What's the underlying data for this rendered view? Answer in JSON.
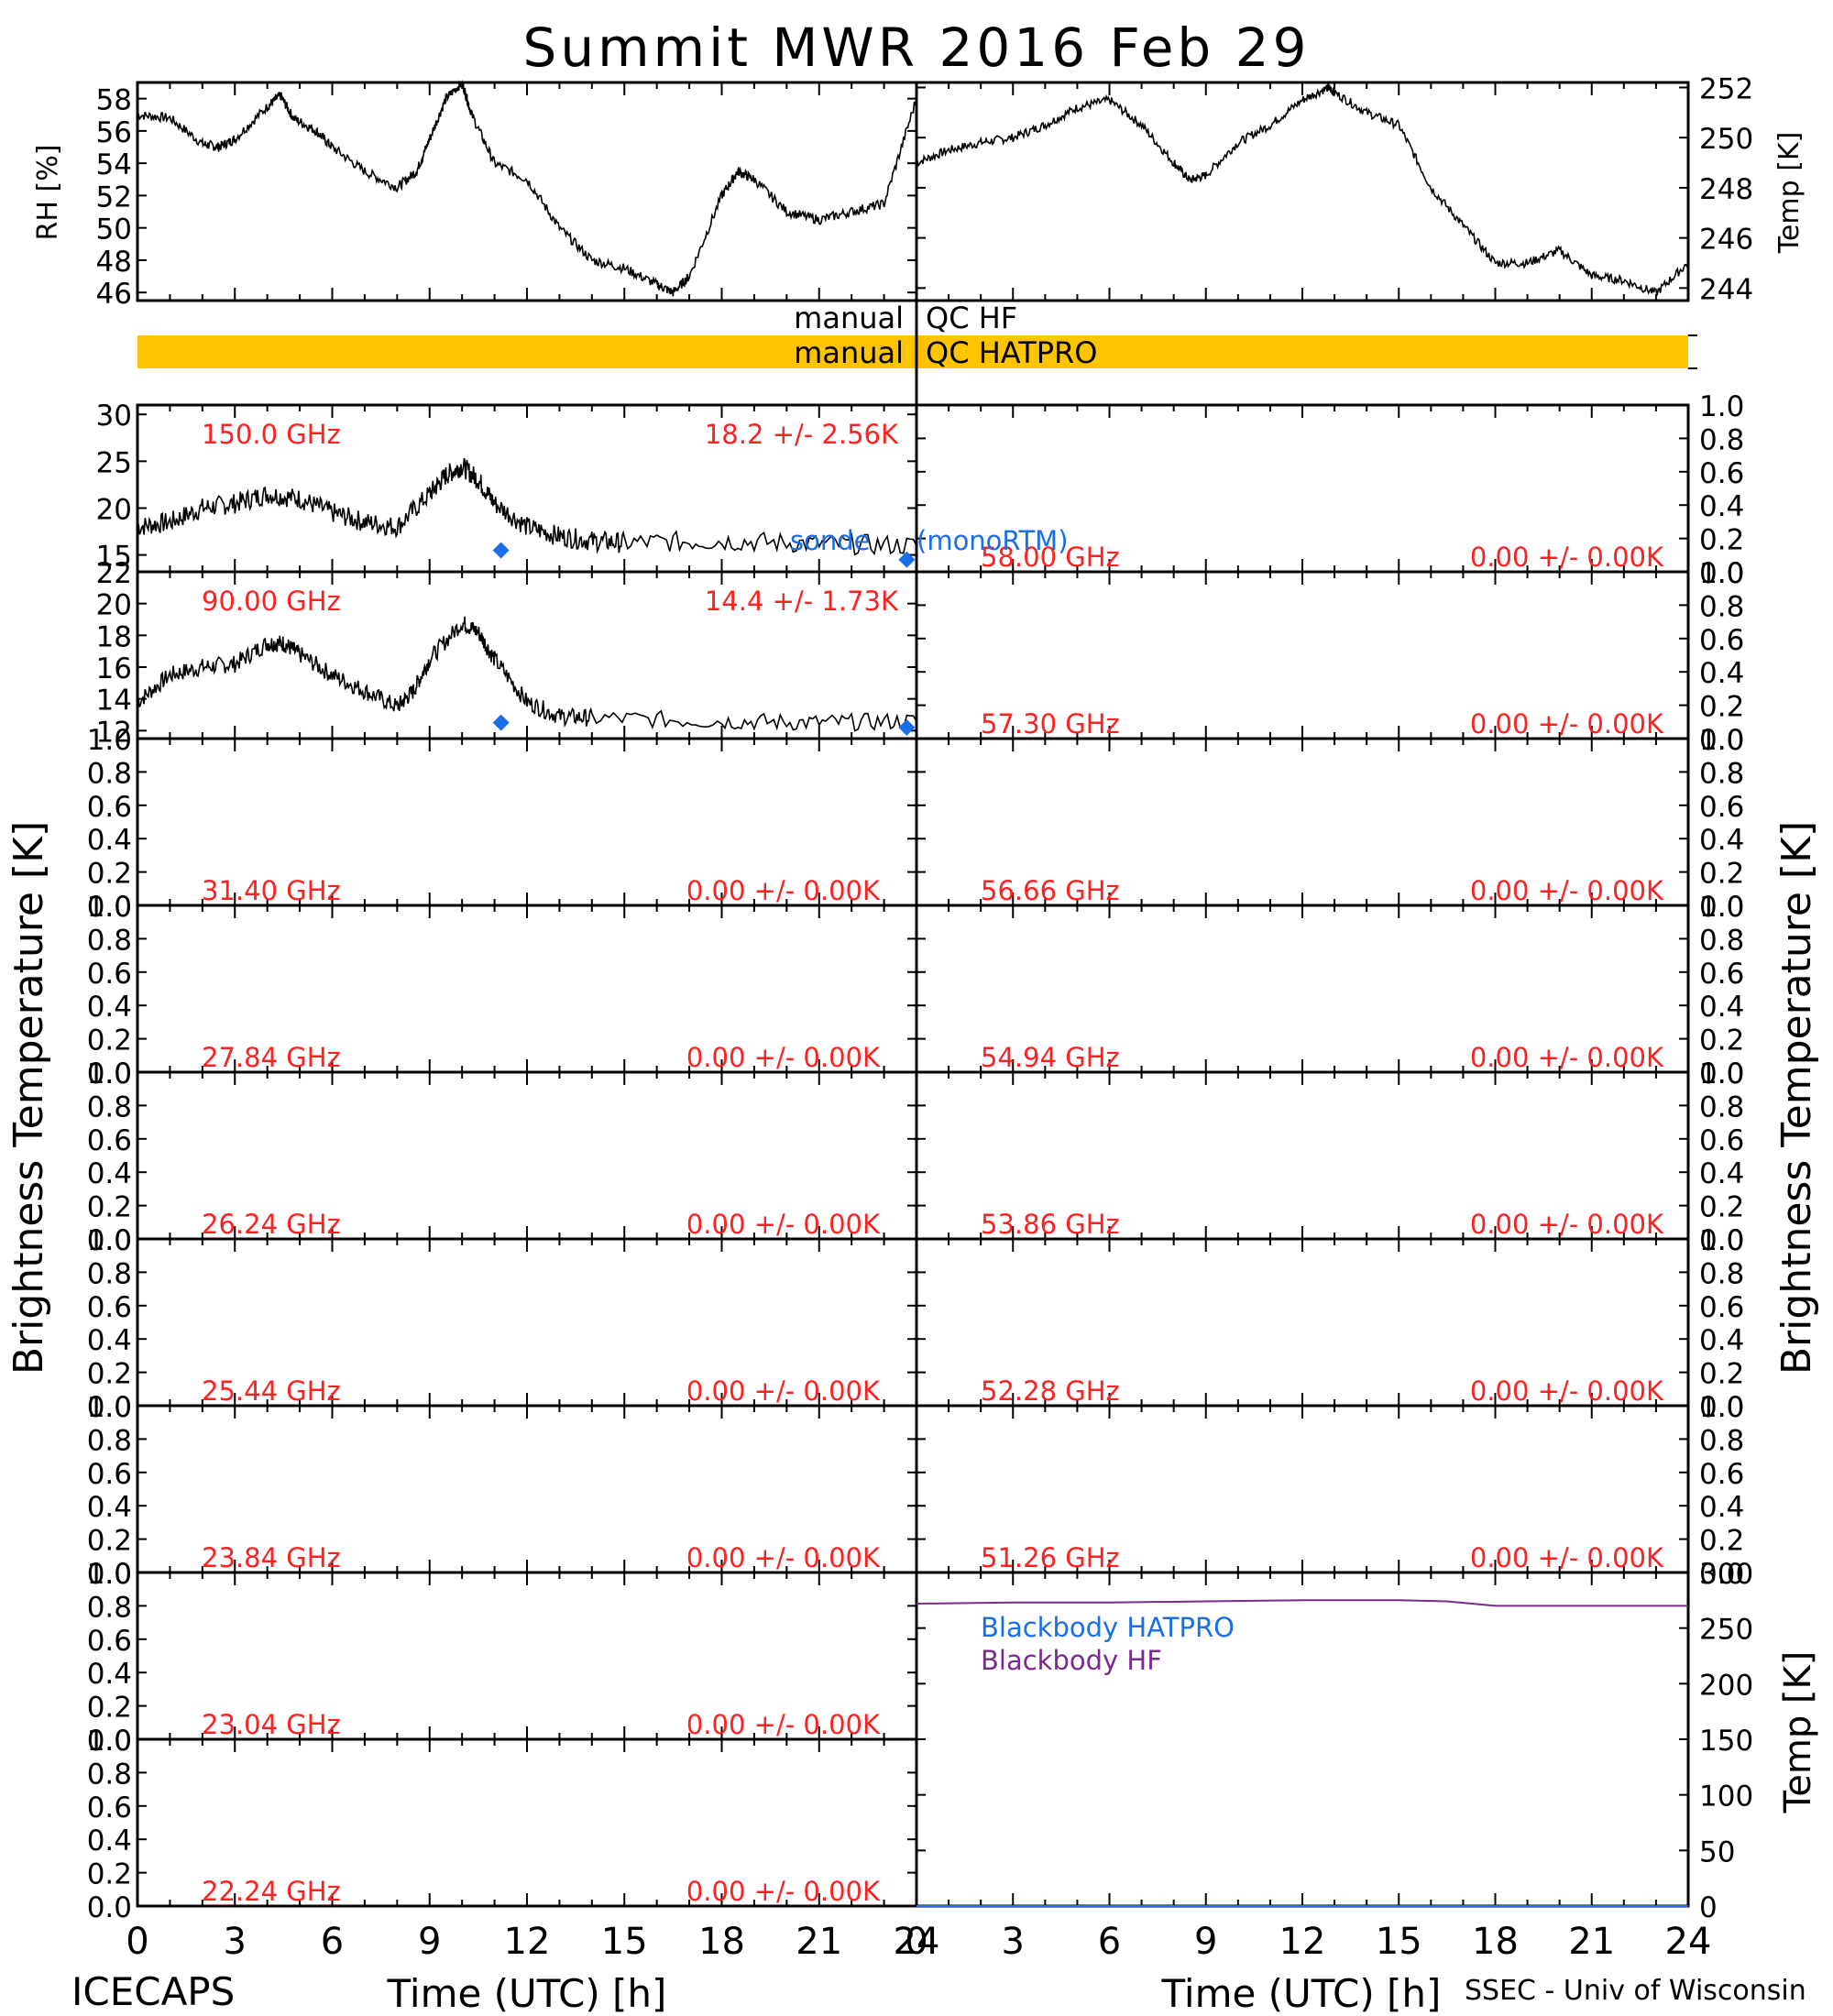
{
  "title": "Summit MWR 2016 Feb 29",
  "footer": {
    "left": "ICECAPS",
    "right": "SSEC - Univ of Wisconsin"
  },
  "colors": {
    "label_red": "#ff2020",
    "retrieval_blue": "#1a6ee8",
    "blackbody_purple": "#7a2a8c",
    "qc_flag_amber": "#ffc400"
  },
  "qc": {
    "hf": {
      "left": "manual",
      "right": "QC HF"
    },
    "hatpro": {
      "left": "manual",
      "right": "QC HATPRO"
    }
  },
  "axes": {
    "rh_ylabel": "RH [%]",
    "temp_ylabel": "Temp [K]",
    "tb_ylabel": "Brightness Temperature [K]",
    "bb_ylabel": "Temp [K]",
    "xlabel": "Time (UTC) [h]"
  },
  "annotations": {
    "monortm": "(monoRTM)",
    "monortm_overlap": "sonde"
  },
  "chart_data": [
    {
      "id": "rh",
      "type": "line",
      "xlim": [
        0,
        24
      ],
      "ylim": [
        45.5,
        59
      ],
      "yticks": [
        46,
        48,
        50,
        52,
        54,
        56,
        58
      ],
      "ylabel": "RH [%]",
      "x": [
        0,
        1,
        2,
        2.5,
        3,
        4,
        4.4,
        4.8,
        5.5,
        6,
        7,
        8,
        8.6,
        9,
        9.5,
        10,
        10.3,
        11,
        12,
        13,
        14,
        15,
        16,
        16.5,
        17,
        18,
        18.5,
        19,
        20,
        21,
        22,
        23,
        24
      ],
      "y": [
        57,
        56.8,
        55.2,
        55.0,
        55.5,
        57.5,
        58.2,
        56.8,
        56,
        55,
        53.5,
        52.5,
        53.5,
        55.5,
        58,
        59,
        57,
        54,
        53,
        50,
        48,
        47.5,
        46.5,
        46,
        47,
        52,
        53.5,
        53,
        51,
        50.5,
        51,
        51.5,
        58
      ]
    },
    {
      "id": "air-temp",
      "type": "line",
      "xlim": [
        0,
        24
      ],
      "ylim": [
        243.5,
        252.2
      ],
      "yticks": [
        244,
        246,
        248,
        250,
        252
      ],
      "ylabel": "Temp [K]",
      "x": [
        0,
        1,
        2,
        3,
        4,
        5,
        6,
        7,
        8,
        8.5,
        9,
        10,
        11,
        12,
        12.8,
        13,
        14,
        15,
        16,
        17,
        18,
        19,
        20,
        21,
        22,
        23,
        24
      ],
      "y": [
        249,
        249.5,
        249.8,
        250,
        250.5,
        251.2,
        251.5,
        250.5,
        249,
        248.3,
        248.5,
        249.8,
        250.5,
        251.5,
        252,
        251.8,
        251,
        250.5,
        248,
        246.5,
        245,
        245,
        245.5,
        244.5,
        244.3,
        243.8,
        245
      ]
    },
    {
      "id": "tb-150",
      "type": "line",
      "freq": "150.0 GHz",
      "stat": "18.2 +/-  2.56K",
      "xlim": [
        0,
        24
      ],
      "ylim": [
        13.2,
        31
      ],
      "yticks": [
        15,
        20,
        25,
        30
      ],
      "x": [
        0,
        1,
        2,
        3,
        4,
        5,
        6,
        7,
        8,
        9,
        9.5,
        10,
        10.5,
        11,
        12,
        13,
        14,
        15,
        18,
        21,
        24
      ],
      "y": [
        18,
        18.5,
        20,
        20.5,
        21.5,
        21,
        19.5,
        18.5,
        18,
        21.5,
        23.5,
        24.5,
        23,
        20.5,
        18,
        17,
        16.5,
        16.3,
        16.5,
        16.2,
        16
      ],
      "retrieval_points": [
        {
          "x": 11.2,
          "y": 15.5
        },
        {
          "x": 23.7,
          "y": 14.5
        }
      ]
    },
    {
      "id": "tb-90",
      "type": "line",
      "freq": "90.00 GHz",
      "stat": "14.4 +/-  1.73K",
      "xlim": [
        0,
        24
      ],
      "ylim": [
        11.5,
        22
      ],
      "yticks": [
        12,
        14,
        16,
        18,
        20,
        22
      ],
      "x": [
        0,
        1,
        2,
        3,
        4,
        4.5,
        5,
        6,
        7,
        8,
        8.5,
        9,
        10,
        10.5,
        11,
        12,
        13,
        14,
        18,
        21,
        24
      ],
      "y": [
        13.8,
        15.5,
        16,
        16.2,
        17.5,
        17.5,
        16.8,
        15.5,
        14.5,
        13.5,
        14.5,
        16.5,
        18.8,
        18.2,
        16.5,
        13.8,
        12.9,
        12.8,
        12.6,
        12.5,
        12.6
      ],
      "retrieval_points": [
        {
          "x": 11.2,
          "y": 12.5
        },
        {
          "x": 23.7,
          "y": 12.2
        }
      ]
    },
    {
      "id": "blackbody",
      "type": "line",
      "xlim": [
        0,
        24
      ],
      "ylim": [
        0,
        300
      ],
      "yticks": [
        0,
        50,
        100,
        150,
        200,
        250,
        300
      ],
      "ylabel": "Temp [K]",
      "series": [
        {
          "name": "Blackbody HATPRO",
          "x": [
            0,
            24
          ],
          "y": [
            0,
            0
          ]
        },
        {
          "name": "Blackbody HF",
          "x": [
            0,
            3,
            6,
            9,
            12,
            15,
            16.5,
            18,
            21,
            24
          ],
          "y": [
            272,
            273,
            273,
            274,
            275,
            275,
            274,
            270,
            270,
            270
          ]
        }
      ]
    }
  ],
  "empty_channels": {
    "left": [
      {
        "freq": "31.40 GHz",
        "stat": "0.00 +/-  0.00K"
      },
      {
        "freq": "27.84 GHz",
        "stat": "0.00 +/-  0.00K"
      },
      {
        "freq": "26.24 GHz",
        "stat": "0.00 +/-  0.00K"
      },
      {
        "freq": "25.44 GHz",
        "stat": "0.00 +/-  0.00K"
      },
      {
        "freq": "23.84 GHz",
        "stat": "0.00 +/-  0.00K"
      },
      {
        "freq": "23.04 GHz",
        "stat": "0.00 +/-  0.00K"
      },
      {
        "freq": "22.24 GHz",
        "stat": "0.00 +/-  0.00K"
      }
    ],
    "right": [
      {
        "freq": "58.00 GHz",
        "stat": "0.00 +/-  0.00K"
      },
      {
        "freq": "57.30 GHz",
        "stat": "0.00 +/-  0.00K"
      },
      {
        "freq": "56.66 GHz",
        "stat": "0.00 +/-  0.00K"
      },
      {
        "freq": "54.94 GHz",
        "stat": "0.00 +/-  0.00K"
      },
      {
        "freq": "53.86 GHz",
        "stat": "0.00 +/-  0.00K"
      },
      {
        "freq": "52.28 GHz",
        "stat": "0.00 +/-  0.00K"
      },
      {
        "freq": "51.26 GHz",
        "stat": "0.00 +/-  0.00K"
      }
    ],
    "yticks": [
      0.0,
      0.2,
      0.4,
      0.6,
      0.8,
      1.0
    ]
  },
  "xticks": [
    0,
    3,
    6,
    9,
    12,
    15,
    18,
    21,
    24
  ]
}
